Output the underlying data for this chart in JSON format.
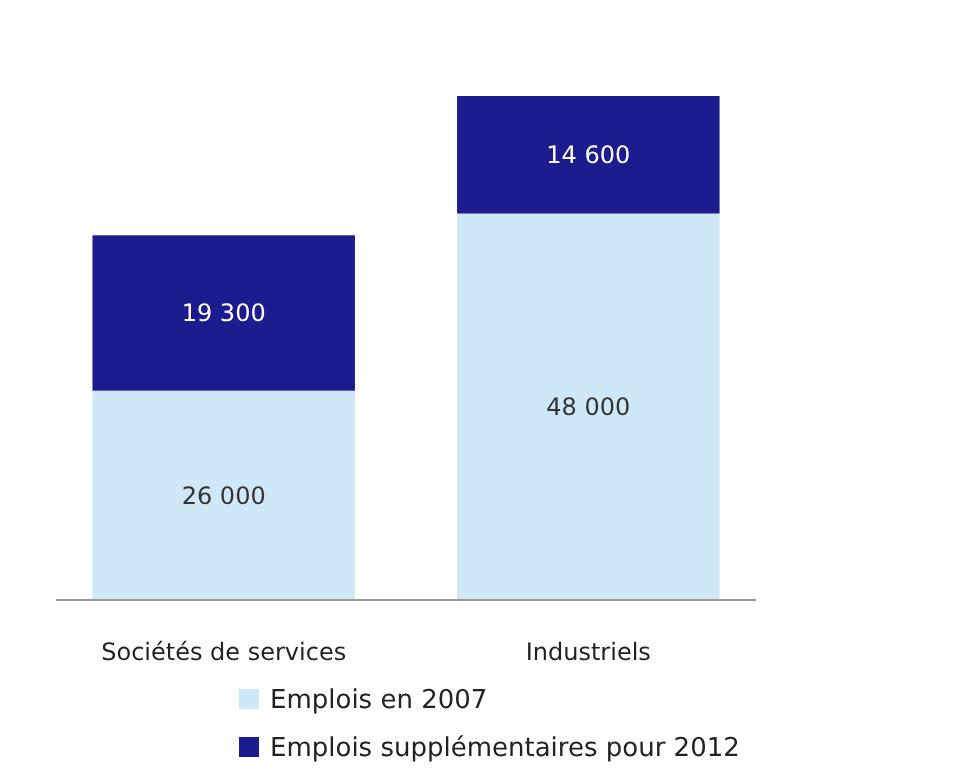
{
  "chart_data": {
    "type": "bar",
    "stacked": true,
    "categories": [
      "Sociétés de services",
      "Industriels"
    ],
    "series": [
      {
        "name": "Emplois en 2007",
        "color": "#cfe8f7",
        "values": [
          26000,
          48000
        ],
        "value_labels": [
          "26 000",
          "48 000"
        ]
      },
      {
        "name": "Emplois supplémentaires pour 2012",
        "color": "#1c1c8f",
        "values": [
          19300,
          14600
        ],
        "value_labels": [
          "19 300",
          "14 600"
        ]
      }
    ],
    "legend": "bottom",
    "grid": false
  }
}
